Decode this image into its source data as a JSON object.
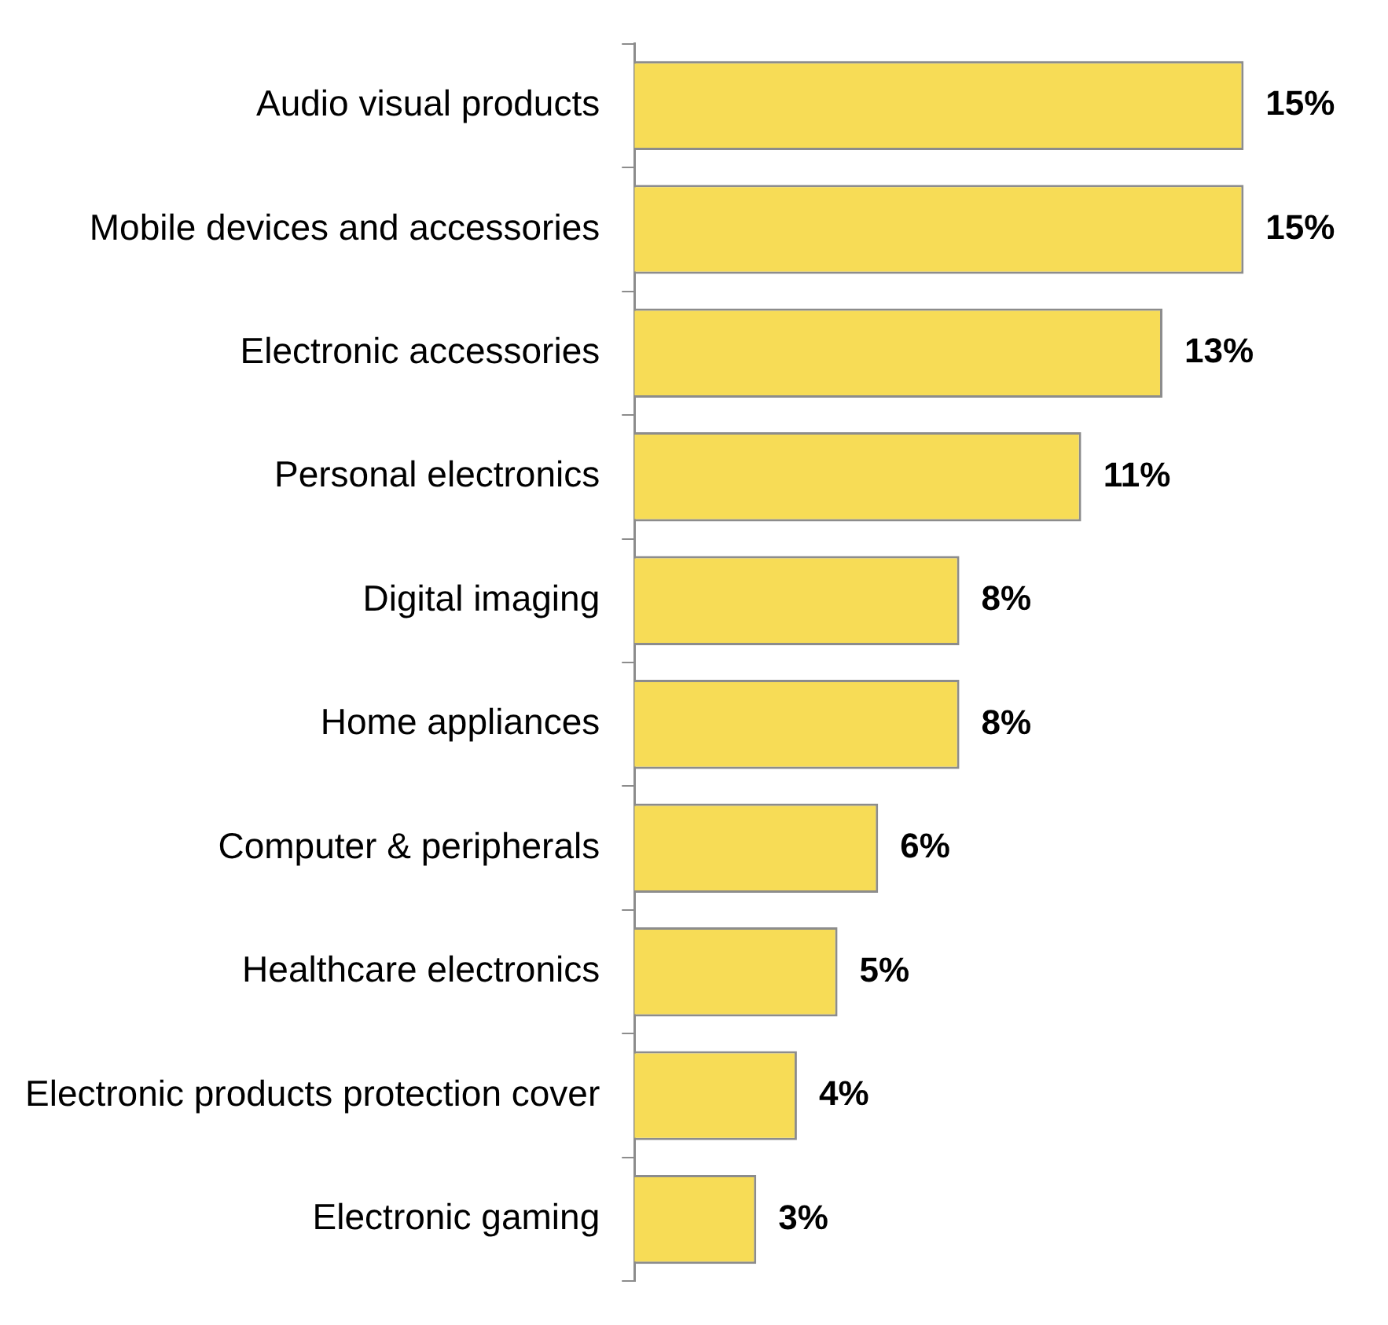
{
  "chart_data": {
    "type": "bar",
    "orientation": "horizontal",
    "tick_labels": "y",
    "categories": [
      "Audio visual products",
      "Mobile devices and accessories",
      "Electronic accessories",
      "Personal electronics",
      "Digital imaging",
      "Home appliances",
      "Computer & peripherals",
      "Healthcare electronics",
      "Electronic products protection cover",
      "Electronic gaming"
    ],
    "values": [
      15,
      15,
      13,
      11,
      8,
      8,
      6,
      5,
      4,
      3
    ],
    "value_labels": [
      "15%",
      "15%",
      "13%",
      "11%",
      "8%",
      "8%",
      "6%",
      "5%",
      "4%",
      "3%"
    ],
    "color": "#f7dc56"
  }
}
